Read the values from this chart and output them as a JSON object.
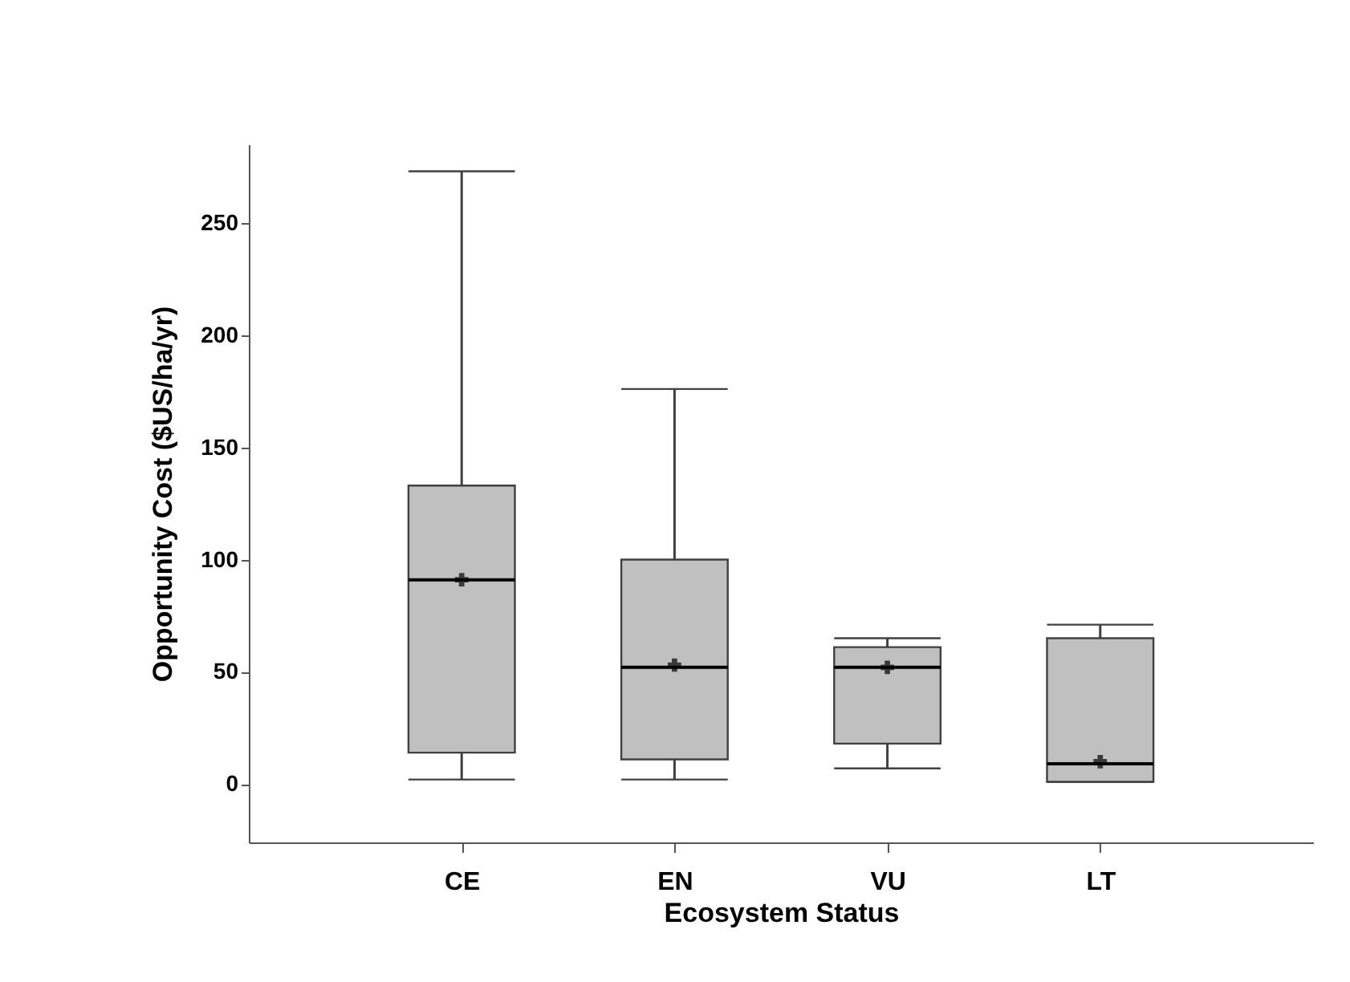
{
  "chart_data": {
    "type": "box",
    "xlabel": "Ecosystem Status",
    "ylabel": "Opportunity Cost ($US/ha/yr)",
    "categories": [
      "CE",
      "EN",
      "VU",
      "LT"
    ],
    "boxes": [
      {
        "low": 2,
        "q1": 14,
        "median": 91,
        "q3": 133,
        "high": 273,
        "mean": 91
      },
      {
        "low": 2,
        "q1": 11,
        "median": 52,
        "q3": 100,
        "high": 176,
        "mean": 53
      },
      {
        "low": 7,
        "q1": 18,
        "median": 52,
        "q3": 61,
        "high": 65,
        "mean": 52
      },
      {
        "low": 1,
        "q1": 1,
        "median": 9,
        "q3": 65,
        "high": 71,
        "mean": 10
      }
    ],
    "color": "#c0c0c0",
    "ylim": [
      -26,
      285
    ],
    "yticks": [
      0,
      50,
      100,
      150,
      200,
      250
    ],
    "grid": false,
    "marker": "cross"
  }
}
